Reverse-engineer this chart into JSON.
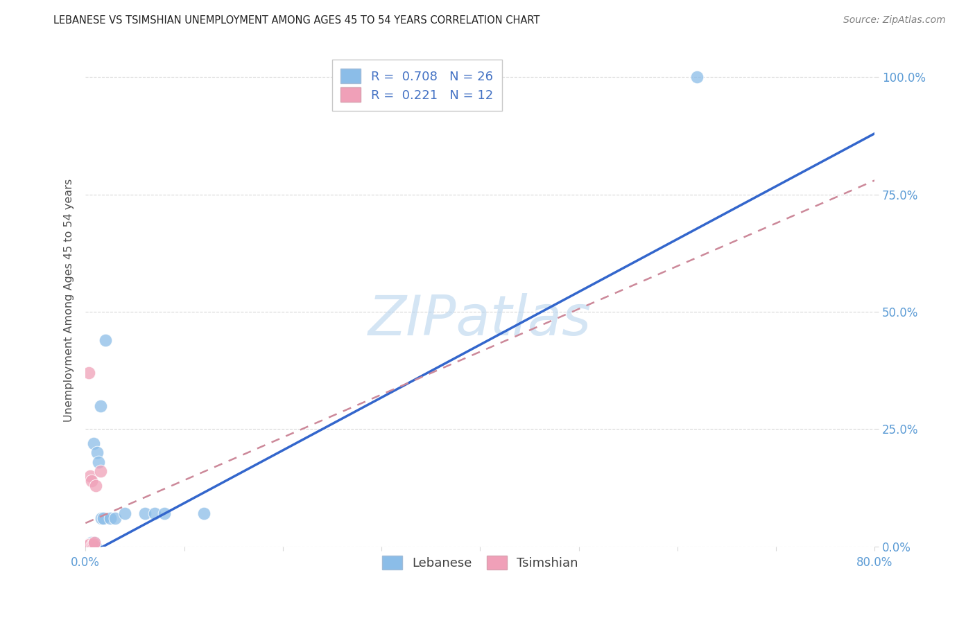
{
  "title": "LEBANESE VS TSIMSHIAN UNEMPLOYMENT AMONG AGES 45 TO 54 YEARS CORRELATION CHART",
  "source": "Source: ZipAtlas.com",
  "ylabel": "Unemployment Among Ages 45 to 54 years",
  "xlim": [
    0,
    0.8
  ],
  "ylim": [
    0,
    1.05
  ],
  "xticks": [
    0.0,
    0.1,
    0.2,
    0.3,
    0.4,
    0.5,
    0.6,
    0.7,
    0.8
  ],
  "xticklabels": [
    "0.0%",
    "",
    "",
    "",
    "",
    "",
    "",
    "",
    "80.0%"
  ],
  "ytick_positions": [
    0.0,
    0.25,
    0.5,
    0.75,
    1.0
  ],
  "ytick_labels": [
    "0.0%",
    "25.0%",
    "50.0%",
    "75.0%",
    "100.0%"
  ],
  "watermark": "ZIPatlas",
  "watermark_color": "#b8d4ee",
  "lebanese_color": "#8bbde8",
  "tsimshian_color": "#f0a0b8",
  "leb_line_color": "#3366cc",
  "tsim_line_color": "#cc8899",
  "background_color": "#ffffff",
  "grid_color": "#d8d8d8",
  "title_color": "#202020",
  "axis_label_color": "#505050",
  "tick_color": "#5b9bd5",
  "lebanese_x": [
    0.002,
    0.003,
    0.003,
    0.004,
    0.004,
    0.005,
    0.005,
    0.006,
    0.006,
    0.007,
    0.007,
    0.008,
    0.008,
    0.009,
    0.009,
    0.01,
    0.012,
    0.013,
    0.015,
    0.016,
    0.018,
    0.02,
    0.025,
    0.03,
    0.04,
    0.06,
    0.07,
    0.08,
    0.12,
    0.62
  ],
  "lebanese_y": [
    0.002,
    0.003,
    0.005,
    0.004,
    0.006,
    0.003,
    0.007,
    0.005,
    0.008,
    0.004,
    0.006,
    0.005,
    0.22,
    0.0,
    0.008,
    0.0,
    0.2,
    0.18,
    0.3,
    0.06,
    0.06,
    0.44,
    0.06,
    0.06,
    0.07,
    0.07,
    0.07,
    0.07,
    0.07,
    1.0
  ],
  "tsimshian_x": [
    0.001,
    0.002,
    0.003,
    0.003,
    0.004,
    0.005,
    0.006,
    0.007,
    0.008,
    0.009,
    0.01,
    0.015
  ],
  "tsimshian_y": [
    0.002,
    0.003,
    0.004,
    0.37,
    0.005,
    0.15,
    0.14,
    0.005,
    0.006,
    0.008,
    0.13,
    0.16
  ],
  "leb_line_x0": 0.0,
  "leb_line_y0": -0.02,
  "leb_line_x1": 0.8,
  "leb_line_y1": 0.88,
  "tsim_line_x0": 0.0,
  "tsim_line_y0": 0.05,
  "tsim_line_x1": 0.8,
  "tsim_line_y1": 0.78
}
